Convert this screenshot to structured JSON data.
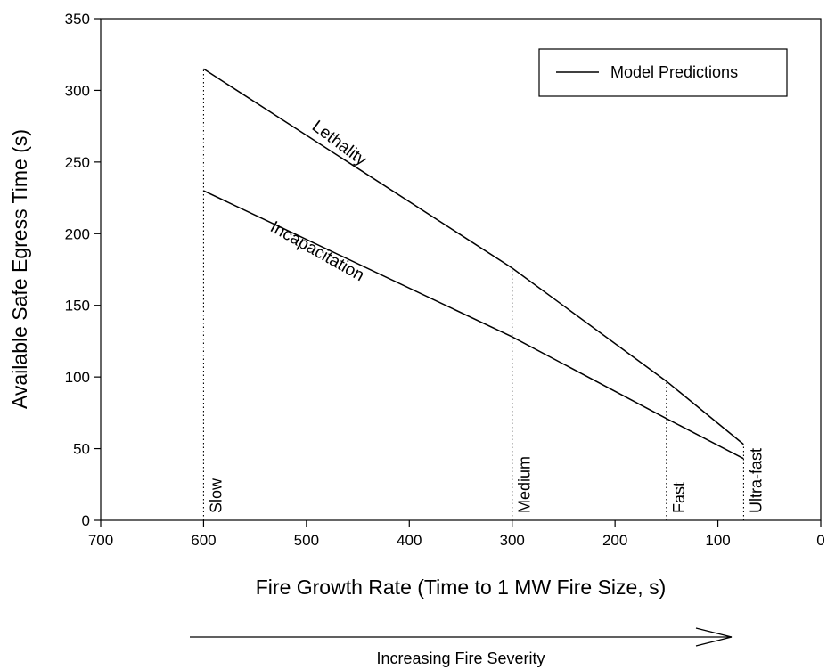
{
  "chart_data": {
    "type": "line",
    "xlabel": "Fire Growth Rate (Time to 1 MW Fire Size, s)",
    "ylabel": "Available Safe Egress Time (s)",
    "xlim": [
      700,
      0
    ],
    "ylim": [
      0,
      350
    ],
    "x_reversed": true,
    "x_ticks": [
      700,
      600,
      500,
      400,
      300,
      200,
      100,
      0
    ],
    "y_ticks": [
      0,
      50,
      100,
      150,
      200,
      250,
      300,
      350
    ],
    "grid": false,
    "legend": {
      "position": "top-right",
      "entries": [
        "Model Predictions"
      ]
    },
    "series": [
      {
        "label": "Lethality",
        "x": [
          600,
          300,
          150,
          75
        ],
        "y": [
          315,
          176,
          97,
          53
        ]
      },
      {
        "label": "Incapacitation",
        "x": [
          600,
          300,
          150,
          75
        ],
        "y": [
          230,
          128,
          71,
          43
        ]
      }
    ],
    "growth_rates": [
      {
        "name": "Slow",
        "x": 600
      },
      {
        "name": "Medium",
        "x": 300
      },
      {
        "name": "Fast",
        "x": 150
      },
      {
        "name": "Ultra-fast",
        "x": 75
      }
    ],
    "annotation": "Increasing Fire Severity"
  }
}
